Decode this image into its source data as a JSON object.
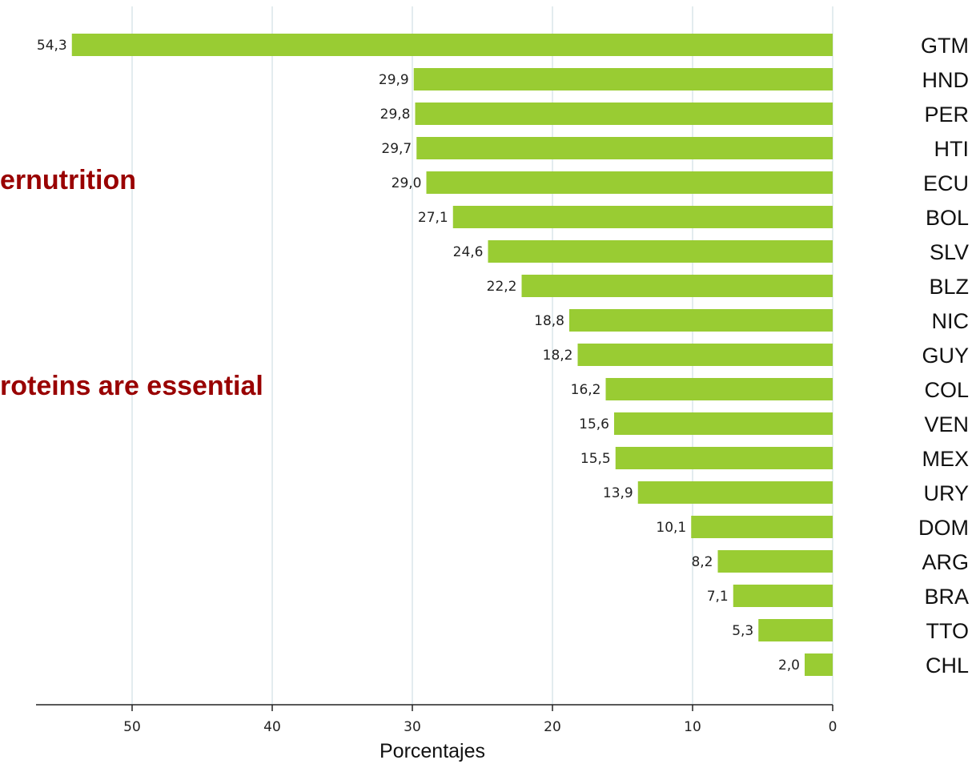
{
  "overlay": {
    "line1": "ernutrition",
    "line2": "roteins are essential"
  },
  "colors": {
    "bar": "#99cc33",
    "grid": "#e3ecef",
    "overlay_text": "#990000"
  },
  "chart_data": {
    "type": "bar",
    "orientation": "horizontal",
    "x_reversed": true,
    "title": "",
    "xlabel": "Porcentajes",
    "ylabel": "",
    "xlim": [
      0,
      56
    ],
    "xticks": [
      50,
      40,
      30,
      20,
      10,
      0
    ],
    "grid": true,
    "categories": [
      "GTM",
      "HND",
      "PER",
      "HTI",
      "ECU",
      "BOL",
      "SLV",
      "BLZ",
      "NIC",
      "GUY",
      "COL",
      "VEN",
      "MEX",
      "URY",
      "DOM",
      "ARG",
      "BRA",
      "TTO",
      "CHL"
    ],
    "values": [
      54.3,
      29.9,
      29.8,
      29.7,
      29.0,
      27.1,
      24.6,
      22.2,
      18.8,
      18.2,
      16.2,
      15.6,
      15.5,
      13.9,
      10.1,
      8.2,
      7.1,
      5.3,
      2.0
    ],
    "value_labels": [
      "54,3",
      "29,9",
      "29,8",
      "29,7",
      "29,0",
      "27,1",
      "24,6",
      "22,2",
      "18,8",
      "18,2",
      "16,2",
      "15,6",
      "15,5",
      "13,9",
      "10,1",
      "8,2",
      "7,1",
      "5,3",
      "2,0"
    ]
  }
}
